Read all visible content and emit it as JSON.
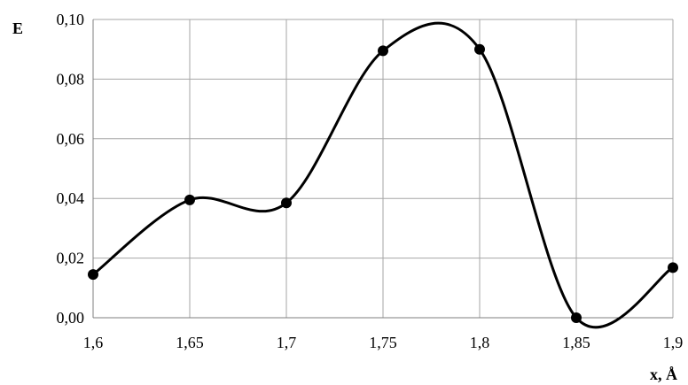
{
  "chart_data": {
    "type": "line",
    "smooth": true,
    "markers": "filled-circle",
    "x": [
      1.6,
      1.65,
      1.7,
      1.75,
      1.8,
      1.85,
      1.9
    ],
    "series": [
      {
        "values": [
          0.0145,
          0.0395,
          0.0385,
          0.0895,
          0.09,
          0.0,
          0.0168
        ],
        "color": "#000000"
      }
    ],
    "xlabel": "x, Å",
    "ylabel": "E",
    "xlim": [
      1.6,
      1.9
    ],
    "ylim": [
      0.0,
      0.1
    ],
    "xticks": [
      "1,6",
      "1,65",
      "1,7",
      "1,75",
      "1,8",
      "1,85",
      "1,9"
    ],
    "yticks": [
      "0,00",
      "0,02",
      "0,04",
      "0,06",
      "0,08",
      "0,10"
    ],
    "grid": true,
    "legend": "none"
  }
}
